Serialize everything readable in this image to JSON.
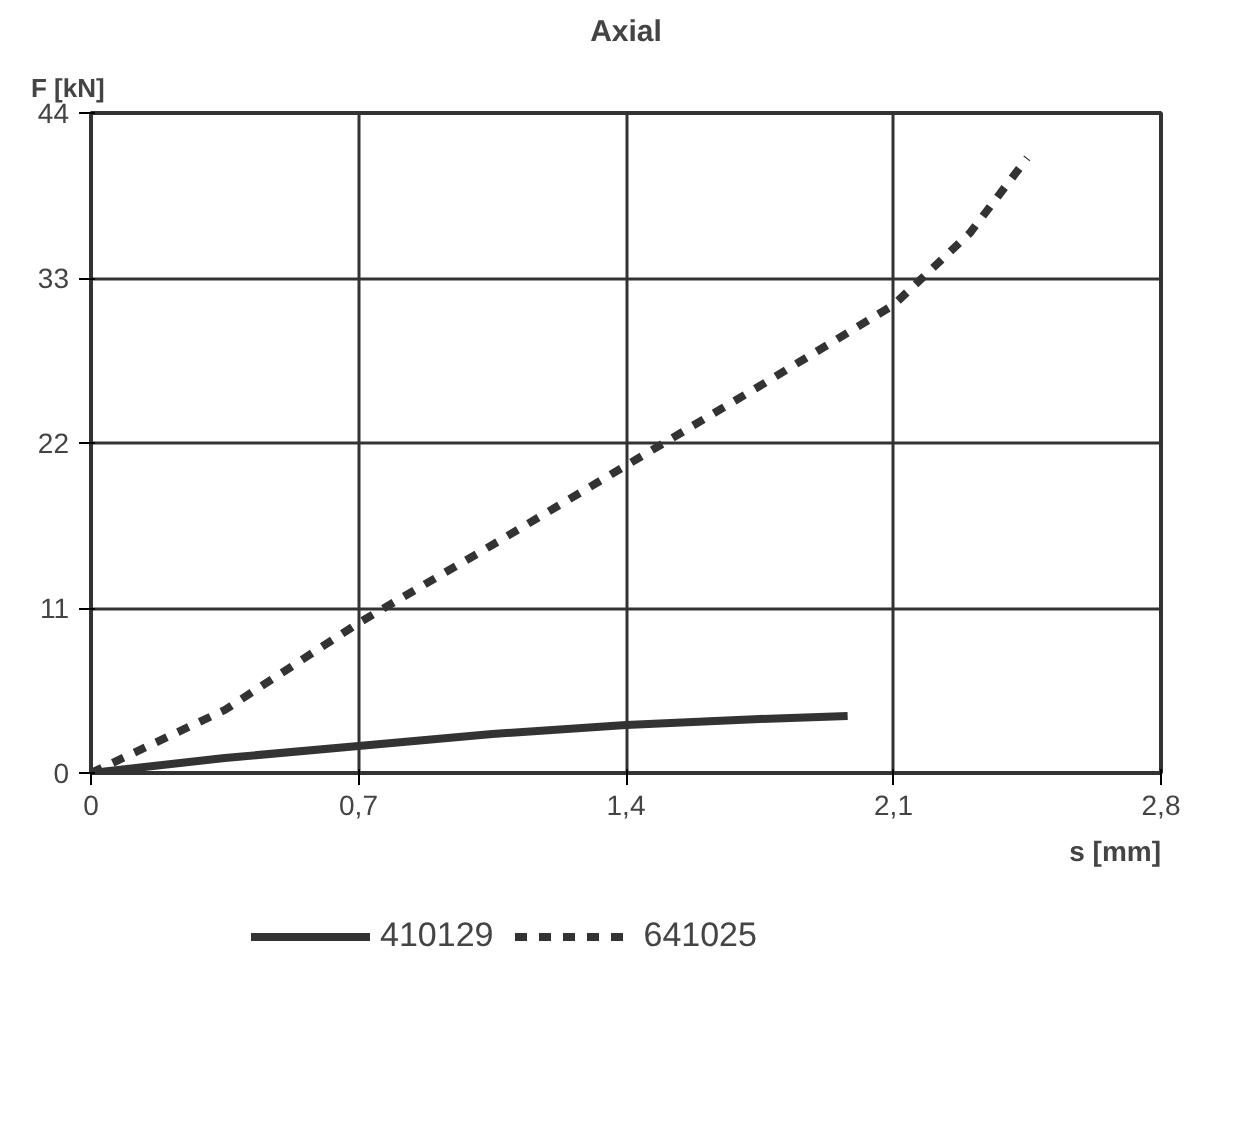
{
  "chart_data": {
    "type": "line",
    "title": "Axial",
    "xlabel": "s [mm]",
    "ylabel": "F [kN]",
    "series": [
      {
        "name": "410129",
        "color": "#333333",
        "line_style": "solid",
        "x": [
          0,
          0.35,
          0.7,
          1.05,
          1.4,
          1.75,
          1.98
        ],
        "values": [
          0,
          1.0,
          1.8,
          2.6,
          3.2,
          3.6,
          3.8
        ]
      },
      {
        "name": "641025",
        "color": "#333333",
        "line_style": "dashed",
        "x": [
          0,
          0.35,
          0.7,
          1.05,
          1.4,
          1.75,
          2.1,
          2.3,
          2.45
        ],
        "values": [
          0,
          4.2,
          10,
          15.2,
          20.5,
          25.8,
          31.2,
          36,
          41
        ]
      }
    ],
    "xlim": [
      0,
      2.8
    ],
    "ylim": [
      0,
      44
    ],
    "xticks": [
      {
        "value": 0,
        "label": "0"
      },
      {
        "value": 0.7,
        "label": "0,7"
      },
      {
        "value": 1.4,
        "label": "1,4"
      },
      {
        "value": 2.1,
        "label": "2,1"
      },
      {
        "value": 2.8,
        "label": "2,8"
      }
    ],
    "yticks": [
      0,
      11,
      22,
      33,
      44
    ],
    "grid": true,
    "legend": "bottom",
    "marker": "none"
  }
}
